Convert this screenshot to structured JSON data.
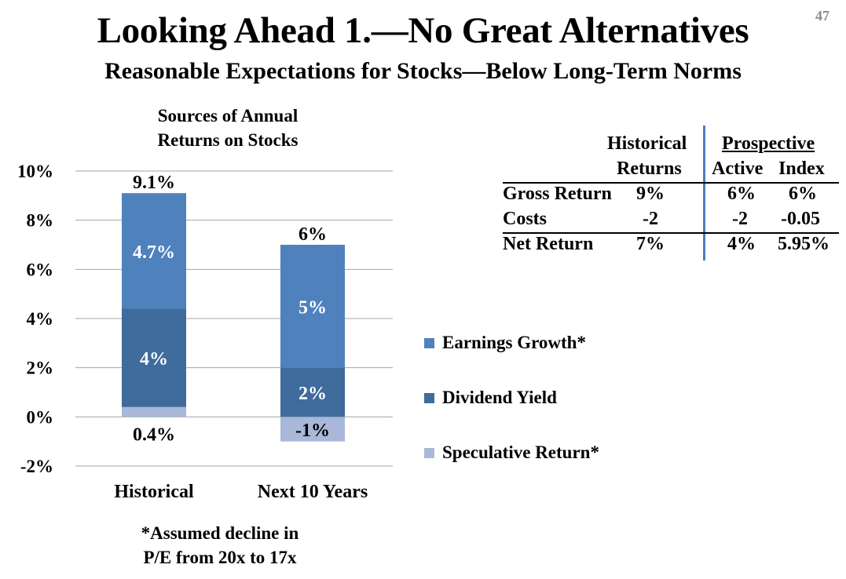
{
  "page_number": "47",
  "title": "Looking Ahead 1.—No Great Alternatives",
  "subtitle": "Reasonable Expectations for Stocks—Below Long-Term Norms",
  "chart_title_line1": "Sources of Annual",
  "chart_title_line2": "Returns on Stocks",
  "footnote_line1": "*Assumed decline in",
  "footnote_line2": "P/E from 20x to 17x",
  "colors": {
    "earnings_growth": "#4f81bd",
    "dividend_yield": "#3f6b9d",
    "speculative_return": "#a9b8d8",
    "gridline": "#a6a6a6",
    "divider": "#4a7ebb"
  },
  "chart_data": {
    "type": "bar",
    "stacked": true,
    "title": "Sources of Annual Returns on Stocks",
    "categories": [
      "Historical",
      "Next 10 Years"
    ],
    "series": [
      {
        "name": "Speculative Return*",
        "values": [
          0.4,
          -1
        ],
        "labels": [
          "0.4%",
          "-1%"
        ],
        "color": "#a9b8d8"
      },
      {
        "name": "Dividend Yield",
        "values": [
          4,
          2
        ],
        "labels": [
          "4%",
          "2%"
        ],
        "color": "#3f6b9d"
      },
      {
        "name": "Earnings Growth*",
        "values": [
          4.7,
          5
        ],
        "labels": [
          "4.7%",
          "5%"
        ],
        "color": "#4f81bd"
      }
    ],
    "totals": [
      9.1,
      6
    ],
    "total_labels": [
      "9.1%",
      "6%"
    ],
    "ylim": [
      -2,
      10
    ],
    "yticks": [
      -2,
      0,
      2,
      4,
      6,
      8,
      10
    ],
    "ytick_labels": [
      "-2%",
      "0%",
      "2%",
      "4%",
      "6%",
      "8%",
      "10%"
    ],
    "grid": true,
    "legend_position": "right",
    "legend_order": [
      "Earnings Growth*",
      "Dividend Yield",
      "Speculative Return*"
    ]
  },
  "table": {
    "header_historical_1": "Historical",
    "header_historical_2": "Returns",
    "header_prospective": "Prospective",
    "header_active": "Active",
    "header_index": "Index",
    "rows": [
      {
        "label": "Gross Return",
        "historical": "9%",
        "active": "6%",
        "index": "6%"
      },
      {
        "label": "Costs",
        "historical": "-2",
        "active": "-2",
        "index": "-0.05"
      },
      {
        "label": "Net Return",
        "historical": "7%",
        "active": "4%",
        "index": "5.95%"
      }
    ]
  }
}
